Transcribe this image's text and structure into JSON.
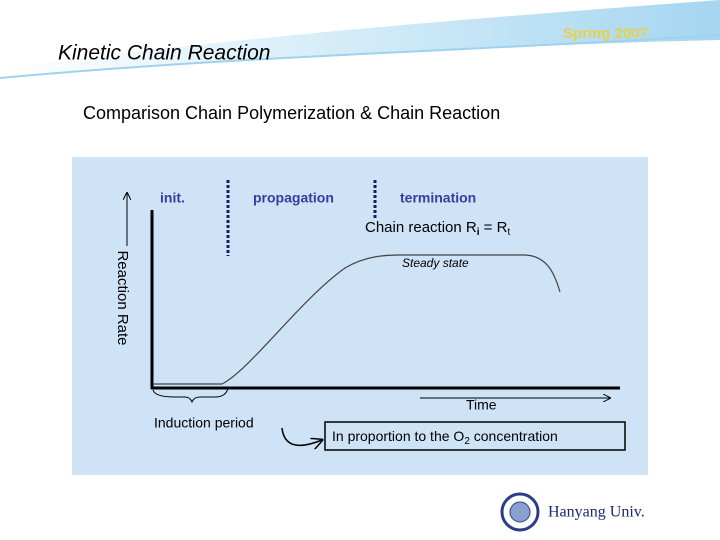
{
  "header": {
    "tag": "Spring 2007",
    "title": "Kinetic Chain Reaction"
  },
  "heading": "Comparison Chain Polymerization & Chain Reaction",
  "diagram": {
    "phases": [
      "init.",
      "propagation",
      "termination"
    ],
    "equation": {
      "text": "Chain reaction  R",
      "sub1": "i",
      "mid": " = R",
      "sub2": "t"
    },
    "y_axis_label": "Reaction Rate",
    "x_axis_label": "Time",
    "steady_state": "Steady state",
    "induction": "Induction period",
    "note": {
      "text": "In proportion to the O",
      "sub": "2",
      "rest": " concentration"
    }
  },
  "footer": {
    "logo_text": "Hanyang Univ."
  }
}
